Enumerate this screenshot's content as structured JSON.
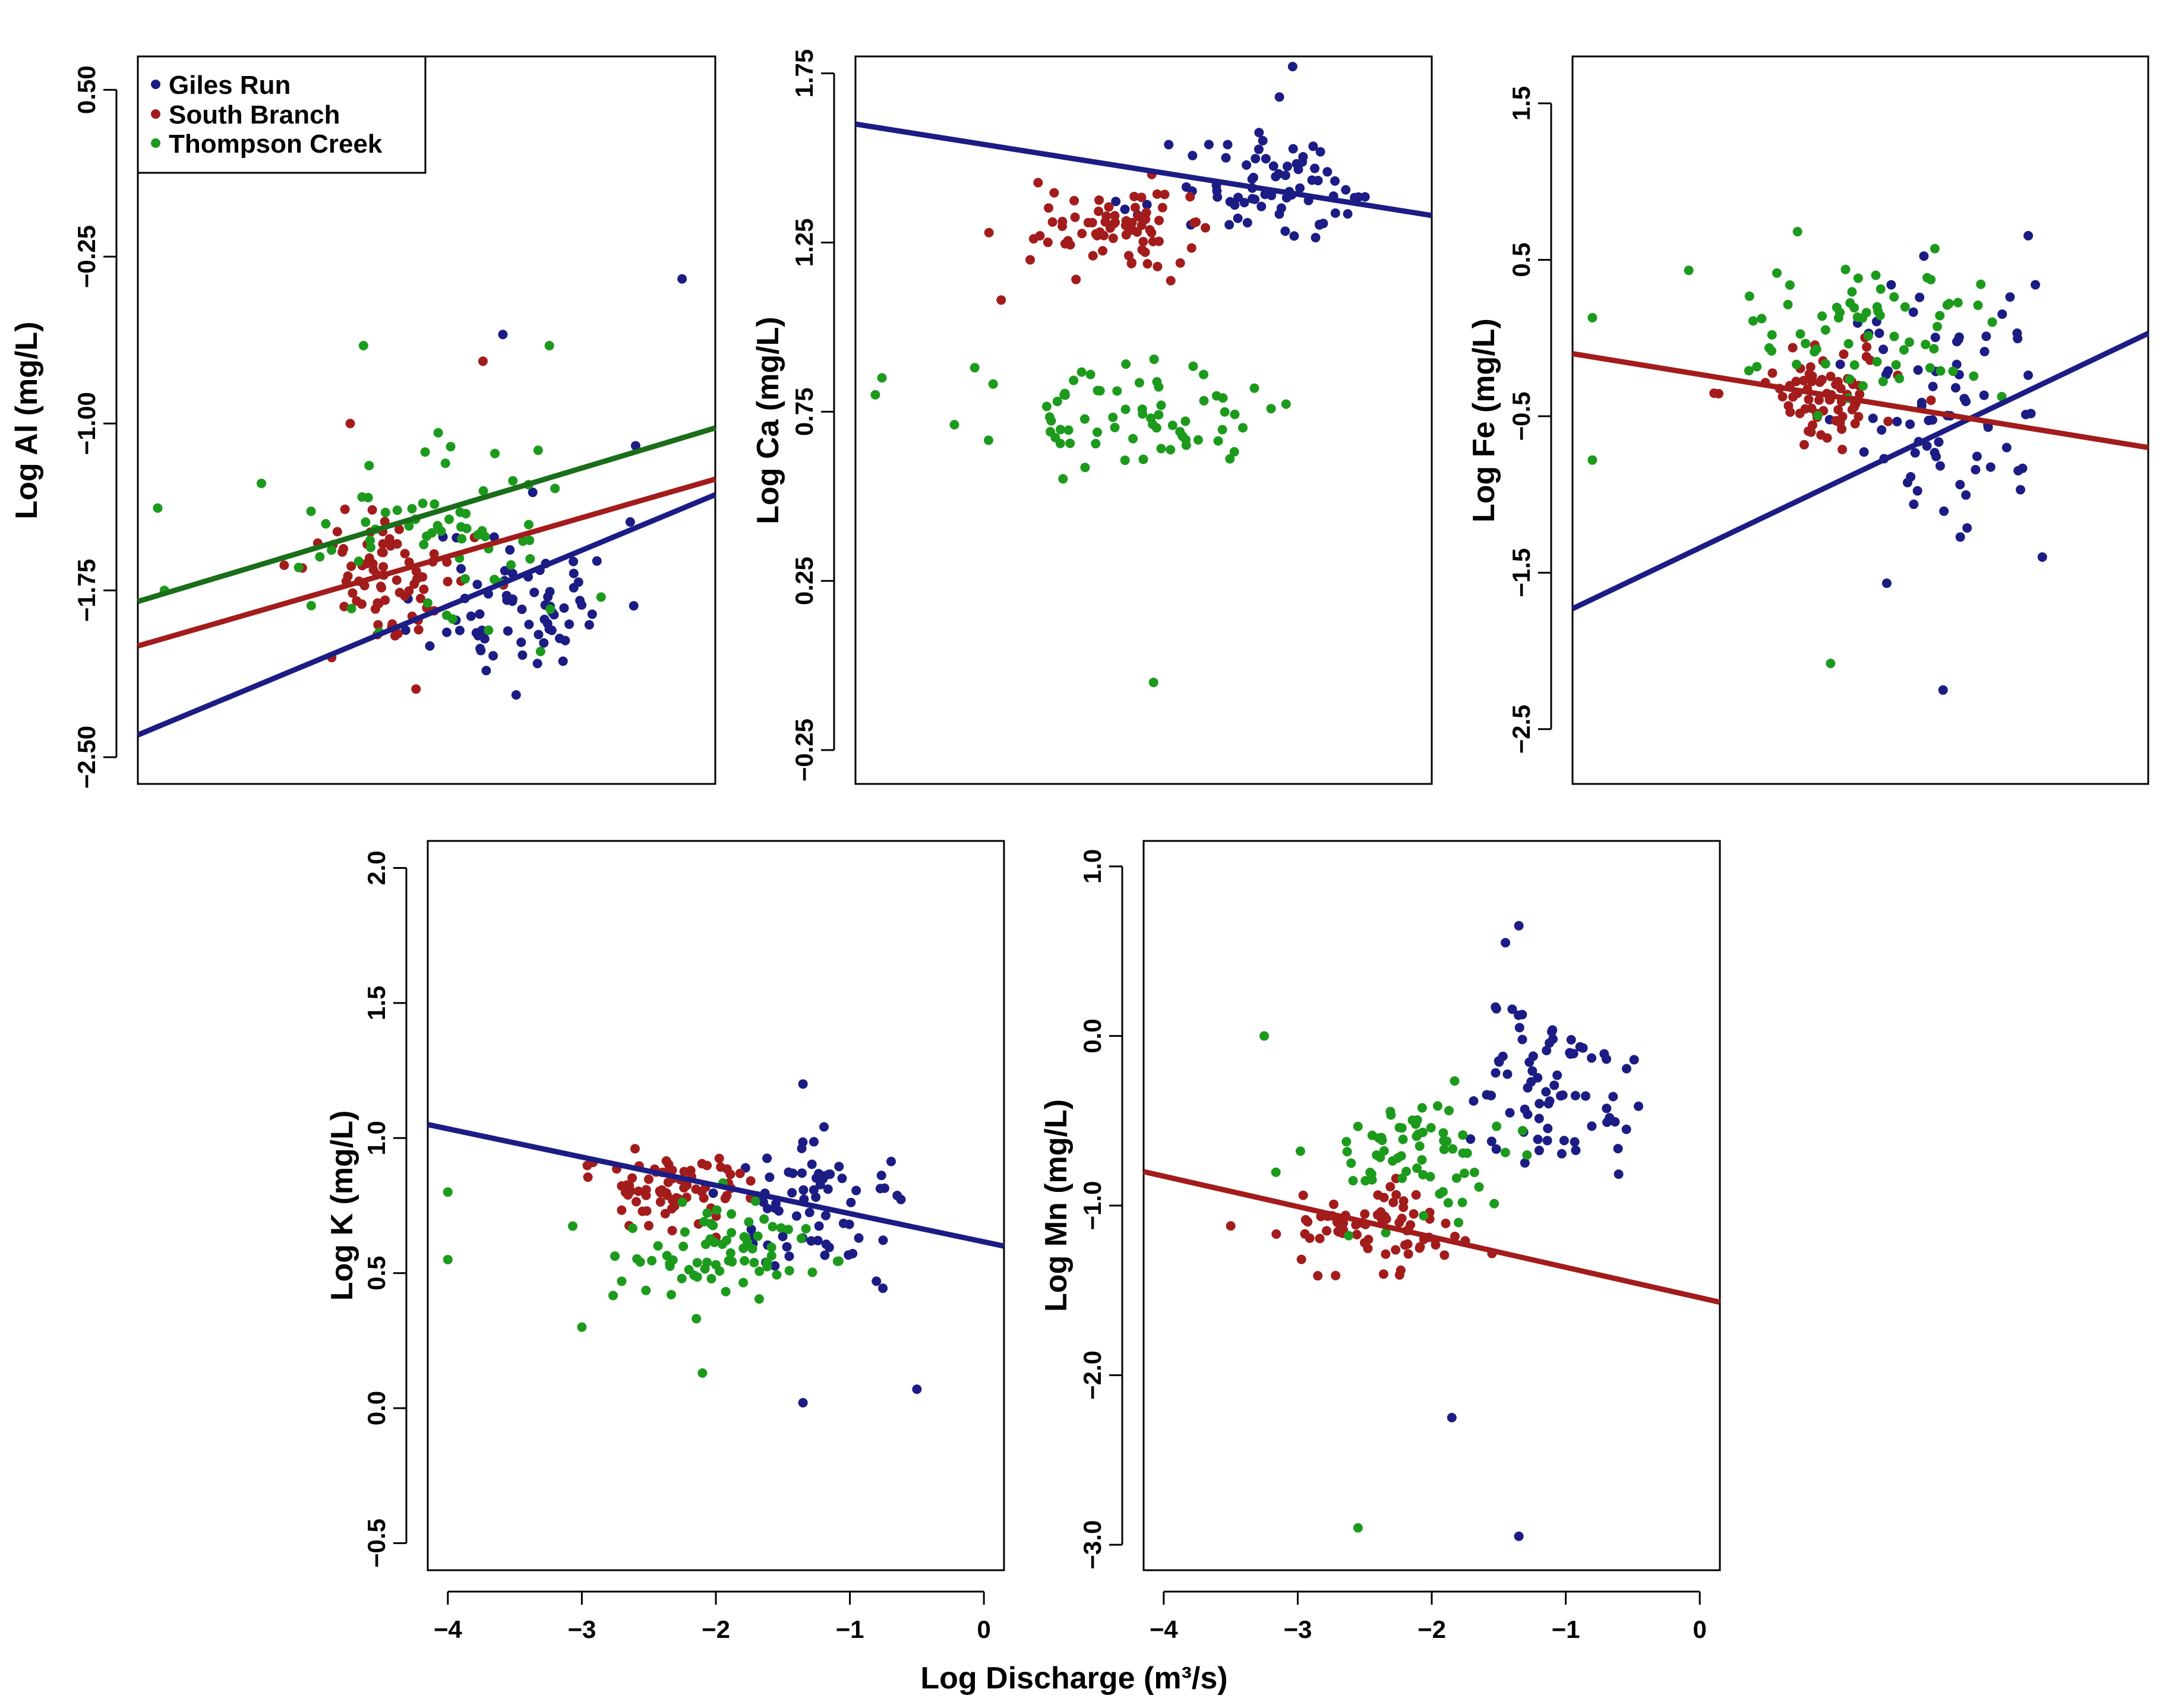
{
  "colors": {
    "giles": "#1c1c85",
    "south": "#a31c1c",
    "thompson": "#1c9a1c",
    "thompson_line": "#1a6e1a",
    "axis": "#000000"
  },
  "legend": {
    "items": [
      {
        "label": "Giles Run",
        "color_key": "giles"
      },
      {
        "label": "South Branch",
        "color_key": "south"
      },
      {
        "label": "Thompson Creek",
        "color_key": "thompson"
      }
    ]
  },
  "shared_xlabel": "Log Discharge (m³/s)",
  "x_ticks": [
    "−4",
    "−3",
    "−2",
    "−1",
    "0"
  ],
  "chart_data": [
    {
      "type": "scatter",
      "id": "al",
      "ylabel": "Log Al (mg/L)",
      "xlim": [
        -4.3,
        0.05
      ],
      "ylim": [
        -2.62,
        0.65
      ],
      "yticks": [
        -2.5,
        -1.75,
        -1.0,
        -0.25,
        0.5
      ],
      "ytick_labels": [
        "−2.50",
        "−1.75",
        "−1.00",
        "−0.25",
        "0.50"
      ],
      "show_x_axis": false,
      "legend": true,
      "fits": [
        {
          "series": "giles",
          "x1": -4.3,
          "y1": -2.4,
          "x2": 0.05,
          "y2": -1.32
        },
        {
          "series": "south",
          "x1": -4.3,
          "y1": -2.0,
          "x2": 0.05,
          "y2": -1.25
        },
        {
          "series": "thompson",
          "x1": -4.3,
          "y1": -1.8,
          "x2": 0.05,
          "y2": -1.02
        }
      ],
      "clusters": [
        {
          "series": "giles",
          "cx": -1.4,
          "cy": -1.8,
          "sx": 0.35,
          "sy": 0.18,
          "n": 70,
          "seed": 11
        },
        {
          "series": "south",
          "cx": -2.4,
          "cy": -1.7,
          "sx": 0.3,
          "sy": 0.16,
          "n": 75,
          "seed": 12
        },
        {
          "series": "thompson",
          "cx": -2.1,
          "cy": -1.5,
          "sx": 0.55,
          "sy": 0.22,
          "n": 65,
          "seed": 13
        }
      ],
      "extra_points": [
        {
          "series": "giles",
          "x": -0.2,
          "y": -0.35
        },
        {
          "series": "giles",
          "x": -1.45,
          "y": -2.22
        },
        {
          "series": "giles",
          "x": -1.55,
          "y": -0.6
        },
        {
          "series": "giles",
          "x": -0.55,
          "y": -1.1
        },
        {
          "series": "south",
          "x": -1.7,
          "y": -0.72
        },
        {
          "series": "south",
          "x": -2.7,
          "y": -1.0
        },
        {
          "series": "thompson",
          "x": -2.6,
          "y": -0.65
        },
        {
          "series": "thompson",
          "x": -1.2,
          "y": -0.65
        },
        {
          "series": "thompson",
          "x": -4.15,
          "y": -1.38
        },
        {
          "series": "thompson",
          "x": -4.1,
          "y": -1.75
        }
      ]
    },
    {
      "type": "scatter",
      "id": "ca",
      "ylabel": "Log Ca (mg/L)",
      "xlim": [
        -4.3,
        0.05
      ],
      "ylim": [
        -0.35,
        1.8
      ],
      "yticks": [
        -0.25,
        0.25,
        0.75,
        1.25,
        1.75
      ],
      "ytick_labels": [
        "−0.25",
        "0.25",
        "0.75",
        "1.25",
        "1.75"
      ],
      "show_x_axis": false,
      "legend": false,
      "fits": [
        {
          "series": "giles",
          "x1": -4.3,
          "y1": 1.6,
          "x2": 0.05,
          "y2": 1.33
        }
      ],
      "clusters": [
        {
          "series": "giles",
          "cx": -1.1,
          "cy": 1.4,
          "sx": 0.4,
          "sy": 0.08,
          "n": 75,
          "seed": 21
        },
        {
          "series": "south",
          "cx": -2.4,
          "cy": 1.3,
          "sx": 0.3,
          "sy": 0.06,
          "n": 75,
          "seed": 22
        },
        {
          "series": "thompson",
          "cx": -2.2,
          "cy": 0.73,
          "sx": 0.5,
          "sy": 0.07,
          "n": 70,
          "seed": 23
        }
      ],
      "extra_points": [
        {
          "series": "giles",
          "x": -1.0,
          "y": 1.77
        },
        {
          "series": "giles",
          "x": -1.1,
          "y": 1.68
        },
        {
          "series": "south",
          "x": -3.2,
          "y": 1.08
        },
        {
          "series": "thompson",
          "x": -2.05,
          "y": -0.05
        },
        {
          "series": "thompson",
          "x": -4.15,
          "y": 0.8
        },
        {
          "series": "thompson",
          "x": -4.1,
          "y": 0.85
        },
        {
          "series": "thompson",
          "x": -3.4,
          "y": 0.88
        }
      ]
    },
    {
      "type": "scatter",
      "id": "fe",
      "ylabel": "Log Fe (mg/L)",
      "xlim": [
        -4.3,
        0.05
      ],
      "ylim": [
        -2.85,
        1.8
      ],
      "yticks": [
        -2.5,
        -1.5,
        -0.5,
        0.5,
        1.5
      ],
      "ytick_labels": [
        "−2.5",
        "−1.5",
        "−0.5",
        "0.5",
        "1.5"
      ],
      "show_x_axis": false,
      "legend": false,
      "fits": [
        {
          "series": "giles",
          "x1": -4.3,
          "y1": -1.73,
          "x2": 0.05,
          "y2": 0.03
        },
        {
          "series": "south",
          "x1": -4.3,
          "y1": -0.1,
          "x2": 0.05,
          "y2": -0.7
        }
      ],
      "clusters": [
        {
          "series": "giles",
          "cx": -1.5,
          "cy": -0.45,
          "sx": 0.4,
          "sy": 0.45,
          "n": 75,
          "seed": 31
        },
        {
          "series": "south",
          "cx": -2.4,
          "cy": -0.35,
          "sx": 0.3,
          "sy": 0.15,
          "n": 75,
          "seed": 32
        },
        {
          "series": "thompson",
          "cx": -2.1,
          "cy": 0.0,
          "sx": 0.45,
          "sy": 0.22,
          "n": 70,
          "seed": 33
        }
      ],
      "extra_points": [
        {
          "series": "giles",
          "x": -1.5,
          "y": -2.25
        },
        {
          "series": "giles",
          "x": -0.75,
          "y": -1.4
        },
        {
          "series": "thompson",
          "x": -2.35,
          "y": -2.08
        },
        {
          "series": "thompson",
          "x": -2.6,
          "y": 0.68
        },
        {
          "series": "thompson",
          "x": -4.15,
          "y": 0.13
        },
        {
          "series": "thompson",
          "x": -4.15,
          "y": -0.78
        }
      ]
    },
    {
      "type": "scatter",
      "id": "k",
      "ylabel": "Log K (mg/L)",
      "xlim": [
        -4.15,
        0.15
      ],
      "ylim": [
        -0.6,
        2.1
      ],
      "yticks": [
        -0.5,
        0.0,
        0.5,
        1.0,
        1.5,
        2.0
      ],
      "ytick_labels": [
        "−0.5",
        "0.0",
        "0.5",
        "1.0",
        "1.5",
        "2.0"
      ],
      "show_x_axis": true,
      "legend": false,
      "fits": [
        {
          "series": "giles",
          "x1": -4.15,
          "y1": 1.05,
          "x2": 0.15,
          "y2": 0.6
        }
      ],
      "clusters": [
        {
          "series": "giles",
          "cx": -1.2,
          "cy": 0.75,
          "sx": 0.35,
          "sy": 0.12,
          "n": 70,
          "seed": 41
        },
        {
          "series": "south",
          "cx": -2.4,
          "cy": 0.82,
          "sx": 0.35,
          "sy": 0.07,
          "n": 75,
          "seed": 42
        },
        {
          "series": "thompson",
          "cx": -2.05,
          "cy": 0.6,
          "sx": 0.45,
          "sy": 0.1,
          "n": 75,
          "seed": 43
        }
      ],
      "extra_points": [
        {
          "series": "giles",
          "x": -1.35,
          "y": 1.2
        },
        {
          "series": "giles",
          "x": -1.35,
          "y": 0.02
        },
        {
          "series": "giles",
          "x": -0.5,
          "y": 0.07
        },
        {
          "series": "thompson",
          "x": -2.1,
          "y": 0.13
        },
        {
          "series": "thompson",
          "x": -4.0,
          "y": 0.8
        },
        {
          "series": "thompson",
          "x": -4.0,
          "y": 0.55
        },
        {
          "series": "thompson",
          "x": -3.0,
          "y": 0.3
        }
      ]
    },
    {
      "type": "scatter",
      "id": "mn",
      "ylabel": "Log Mn (mg/L)",
      "xlim": [
        -4.15,
        0.15
      ],
      "ylim": [
        -3.15,
        1.15
      ],
      "yticks": [
        -3.0,
        -2.0,
        -1.0,
        0.0,
        1.0
      ],
      "ytick_labels": [
        "−3.0",
        "−2.0",
        "−1.0",
        "0.0",
        "1.0"
      ],
      "show_x_axis": true,
      "legend": false,
      "fits": [
        {
          "series": "south",
          "x1": -4.15,
          "y1": -0.8,
          "x2": 0.15,
          "y2": -1.57
        }
      ],
      "clusters": [
        {
          "series": "giles",
          "cx": -1.15,
          "cy": -0.3,
          "sx": 0.35,
          "sy": 0.25,
          "n": 75,
          "seed": 51
        },
        {
          "series": "south",
          "cx": -2.4,
          "cy": -1.15,
          "sx": 0.3,
          "sy": 0.13,
          "n": 75,
          "seed": 52
        },
        {
          "series": "thompson",
          "cx": -2.1,
          "cy": -0.7,
          "sx": 0.4,
          "sy": 0.2,
          "n": 70,
          "seed": 53
        }
      ],
      "extra_points": [
        {
          "series": "giles",
          "x": -1.35,
          "y": 0.65
        },
        {
          "series": "giles",
          "x": -1.45,
          "y": 0.55
        },
        {
          "series": "giles",
          "x": -1.85,
          "y": -2.25
        },
        {
          "series": "giles",
          "x": -1.35,
          "y": -2.95
        },
        {
          "series": "thompson",
          "x": -2.55,
          "y": -2.9
        },
        {
          "series": "thompson",
          "x": -3.25,
          "y": 0.0
        },
        {
          "series": "south",
          "x": -3.5,
          "y": -1.12
        }
      ]
    }
  ]
}
